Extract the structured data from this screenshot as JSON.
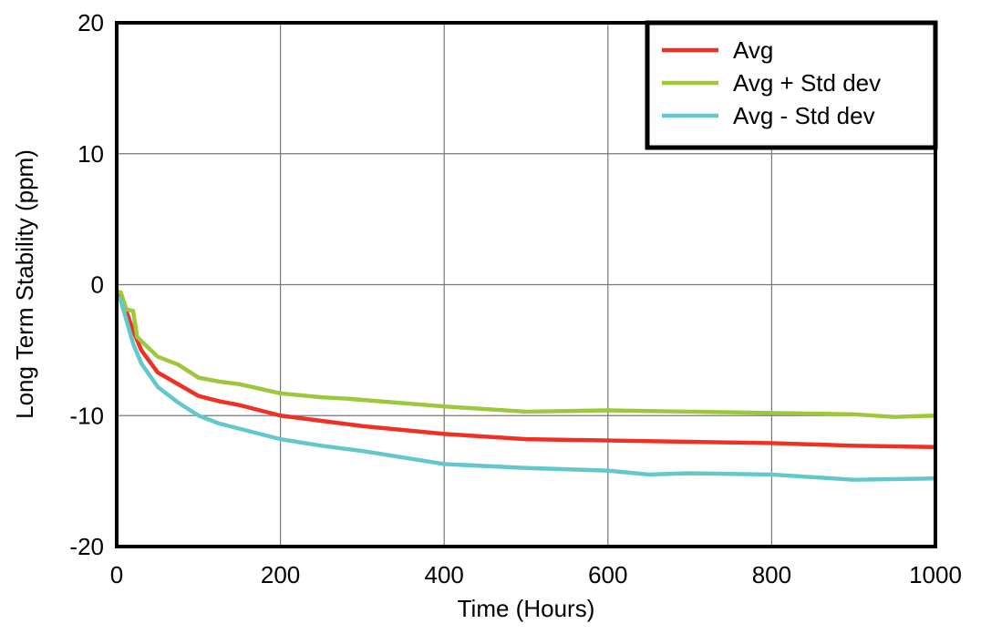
{
  "chart_data": {
    "type": "line",
    "title": "",
    "xlabel": "Time (Hours)",
    "ylabel": "Long Term Stability (ppm)",
    "xlim": [
      0,
      1000
    ],
    "ylim": [
      -20,
      20
    ],
    "xticks": [
      "0",
      "200",
      "400",
      "600",
      "800",
      "1000"
    ],
    "yticks": [
      "-20",
      "-10",
      "0",
      "10",
      "20"
    ],
    "grid": true,
    "legend_position": "top-right",
    "series": [
      {
        "name": "Avg",
        "color": "#ee3124",
        "x": [
          0,
          5,
          20,
          30,
          50,
          75,
          100,
          125,
          150,
          200,
          250,
          300,
          400,
          500,
          600,
          700,
          800,
          900,
          1000
        ],
        "y": [
          -0.5,
          -0.8,
          -3.5,
          -5.0,
          -6.7,
          -7.6,
          -8.5,
          -8.9,
          -9.2,
          -10.0,
          -10.4,
          -10.8,
          -11.4,
          -11.8,
          -11.9,
          -12.0,
          -12.1,
          -12.3,
          -12.4
        ]
      },
      {
        "name": "Avg + Std dev",
        "color": "#9dc83b",
        "x": [
          0,
          5,
          12,
          20,
          25,
          50,
          75,
          100,
          125,
          150,
          200,
          250,
          280,
          400,
          500,
          600,
          700,
          800,
          900,
          950,
          1000
        ],
        "y": [
          -0.5,
          -0.6,
          -1.9,
          -2.0,
          -4.0,
          -5.5,
          -6.1,
          -7.1,
          -7.4,
          -7.6,
          -8.3,
          -8.6,
          -8.7,
          -9.3,
          -9.7,
          -9.6,
          -9.7,
          -9.8,
          -9.9,
          -10.1,
          -10.0
        ]
      },
      {
        "name": "Avg - Std dev",
        "color": "#62c8cc",
        "x": [
          0,
          5,
          20,
          30,
          50,
          75,
          100,
          125,
          150,
          200,
          250,
          300,
          400,
          500,
          600,
          650,
          700,
          800,
          900,
          1000
        ],
        "y": [
          -0.9,
          -1.2,
          -4.5,
          -6.0,
          -7.8,
          -9.0,
          -10.0,
          -10.6,
          -11.0,
          -11.8,
          -12.3,
          -12.7,
          -13.7,
          -14.0,
          -14.2,
          -14.5,
          -14.4,
          -14.5,
          -14.9,
          -14.8
        ]
      }
    ]
  }
}
